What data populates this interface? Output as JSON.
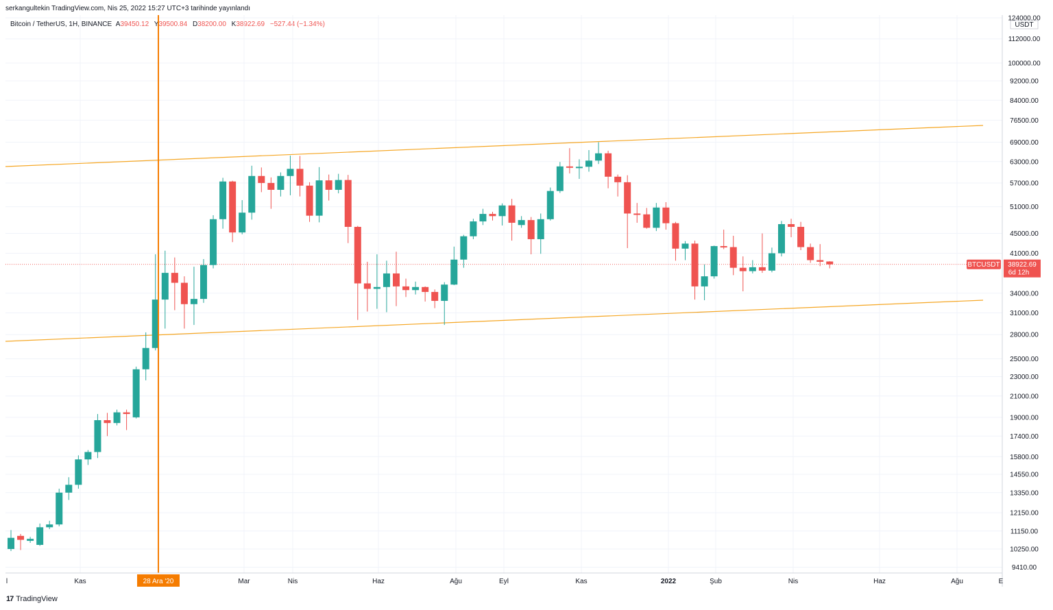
{
  "publisher_note": "serkangultekin TradingView.com, Nis 25, 2022 15:27 UTC+3 tarihinde yayınlandı",
  "legend": {
    "symbol": "Bitcoin / TetherUS, 1H, BINANCE",
    "open_label": "A",
    "open": "39450.12",
    "high_label": "Y",
    "high": "39500.84",
    "low_label": "D",
    "low": "38200.00",
    "close_label": "K",
    "close": "38922.69",
    "change": "−527.44 (−1.34%)"
  },
  "price_tag": {
    "symbol": "BTCUSDT",
    "price": "38922.69",
    "countdown": "6d 12h"
  },
  "axis_currency": "USDT",
  "branding": "TradingView",
  "colors": {
    "up": "#26a69a",
    "down": "#ef5350",
    "channel": "#f5a623",
    "marker": "#f57c00"
  },
  "chart_data": {
    "type": "candlestick",
    "title": "",
    "yscale": "log",
    "ylim": [
      9000,
      125000
    ],
    "y_tick_labels": [
      "124000.00",
      "112000.00",
      "100000.00",
      "92000.00",
      "84000.00",
      "76500.00",
      "69000.00",
      "63000.00",
      "57000.00",
      "51000.00",
      "45000.00",
      "41000.00",
      "34000.00",
      "31000.00",
      "28000.00",
      "25000.00",
      "23000.00",
      "21000.00",
      "19000.00",
      "17400.00",
      "15800.00",
      "14550.00",
      "13350.00",
      "12150.00",
      "11150.00",
      "10250.00",
      "9410.00"
    ],
    "x_tick_labels": [
      "l",
      "Kas",
      "Mar",
      "Nis",
      "Haz",
      "Ağu",
      "Eyl",
      "Kas",
      "2022",
      "Şub",
      "Nis",
      "Haz",
      "Ağu",
      "E"
    ],
    "highlighted_date": "28 Ara '20",
    "last_price": 38922.69,
    "candles": [
      {
        "o": 10250,
        "h": 11200,
        "l": 10150,
        "c": 10800
      },
      {
        "o": 10900,
        "h": 11000,
        "l": 10200,
        "c": 10700
      },
      {
        "o": 10650,
        "h": 10850,
        "l": 10550,
        "c": 10750
      },
      {
        "o": 10450,
        "h": 11550,
        "l": 10400,
        "c": 11350
      },
      {
        "o": 11350,
        "h": 11700,
        "l": 11250,
        "c": 11500
      },
      {
        "o": 11500,
        "h": 13600,
        "l": 11400,
        "c": 13350
      },
      {
        "o": 13350,
        "h": 14350,
        "l": 12900,
        "c": 13850
      },
      {
        "o": 13850,
        "h": 15900,
        "l": 13600,
        "c": 15600
      },
      {
        "o": 15600,
        "h": 16300,
        "l": 15200,
        "c": 16150
      },
      {
        "o": 16150,
        "h": 19300,
        "l": 15700,
        "c": 18750
      },
      {
        "o": 18750,
        "h": 19400,
        "l": 17400,
        "c": 18500
      },
      {
        "o": 18500,
        "h": 19700,
        "l": 18300,
        "c": 19450
      },
      {
        "o": 19450,
        "h": 19700,
        "l": 17900,
        "c": 19300
      },
      {
        "o": 19000,
        "h": 24100,
        "l": 18900,
        "c": 23800
      },
      {
        "o": 23800,
        "h": 28300,
        "l": 22600,
        "c": 26300
      },
      {
        "o": 26300,
        "h": 40800,
        "l": 26000,
        "c": 33000
      },
      {
        "o": 33000,
        "h": 41500,
        "l": 28800,
        "c": 37400
      },
      {
        "o": 37400,
        "h": 40200,
        "l": 31400,
        "c": 35700
      },
      {
        "o": 35700,
        "h": 36800,
        "l": 28800,
        "c": 32300
      },
      {
        "o": 32300,
        "h": 38500,
        "l": 29300,
        "c": 33100
      },
      {
        "o": 33100,
        "h": 39900,
        "l": 32500,
        "c": 38800
      },
      {
        "o": 38800,
        "h": 49000,
        "l": 38200,
        "c": 48100
      },
      {
        "o": 48100,
        "h": 58400,
        "l": 46000,
        "c": 57400
      },
      {
        "o": 57400,
        "h": 57600,
        "l": 43200,
        "c": 45200
      },
      {
        "o": 45200,
        "h": 52600,
        "l": 44800,
        "c": 49600
      },
      {
        "o": 49600,
        "h": 61800,
        "l": 48000,
        "c": 58900
      },
      {
        "o": 58900,
        "h": 61300,
        "l": 54600,
        "c": 57000
      },
      {
        "o": 57000,
        "h": 58500,
        "l": 50500,
        "c": 55200
      },
      {
        "o": 55200,
        "h": 59900,
        "l": 53500,
        "c": 58900
      },
      {
        "o": 58900,
        "h": 64800,
        "l": 53800,
        "c": 60900
      },
      {
        "o": 60900,
        "h": 64700,
        "l": 53500,
        "c": 56300
      },
      {
        "o": 56300,
        "h": 57200,
        "l": 47500,
        "c": 48900
      },
      {
        "o": 48900,
        "h": 61400,
        "l": 47400,
        "c": 57700
      },
      {
        "o": 57700,
        "h": 59300,
        "l": 52500,
        "c": 55200
      },
      {
        "o": 55200,
        "h": 59500,
        "l": 54300,
        "c": 57800
      },
      {
        "o": 57800,
        "h": 59200,
        "l": 43000,
        "c": 46400
      },
      {
        "o": 46400,
        "h": 46600,
        "l": 30000,
        "c": 35600
      },
      {
        "o": 35600,
        "h": 39400,
        "l": 31200,
        "c": 34700
      },
      {
        "o": 34700,
        "h": 40800,
        "l": 31600,
        "c": 35000
      },
      {
        "o": 35000,
        "h": 39600,
        "l": 31100,
        "c": 37300
      },
      {
        "o": 37300,
        "h": 41300,
        "l": 32000,
        "c": 35100
      },
      {
        "o": 35100,
        "h": 36400,
        "l": 33400,
        "c": 34500
      },
      {
        "o": 34500,
        "h": 35900,
        "l": 33800,
        "c": 35000
      },
      {
        "o": 35000,
        "h": 35100,
        "l": 32700,
        "c": 34200
      },
      {
        "o": 34200,
        "h": 34600,
        "l": 31700,
        "c": 32800
      },
      {
        "o": 32800,
        "h": 35800,
        "l": 29300,
        "c": 35400
      },
      {
        "o": 35400,
        "h": 42300,
        "l": 35300,
        "c": 39800
      },
      {
        "o": 39800,
        "h": 44700,
        "l": 38300,
        "c": 44400
      },
      {
        "o": 44400,
        "h": 48200,
        "l": 43800,
        "c": 47600
      },
      {
        "o": 47600,
        "h": 50500,
        "l": 46800,
        "c": 49300
      },
      {
        "o": 49300,
        "h": 49800,
        "l": 47800,
        "c": 48800
      },
      {
        "o": 48800,
        "h": 51800,
        "l": 46700,
        "c": 51300
      },
      {
        "o": 51300,
        "h": 52900,
        "l": 43500,
        "c": 47300
      },
      {
        "o": 46800,
        "h": 48800,
        "l": 46200,
        "c": 47900
      },
      {
        "o": 47900,
        "h": 48600,
        "l": 40800,
        "c": 43800
      },
      {
        "o": 43800,
        "h": 49400,
        "l": 40900,
        "c": 48100
      },
      {
        "o": 48100,
        "h": 55800,
        "l": 47800,
        "c": 54900
      },
      {
        "o": 54900,
        "h": 62900,
        "l": 54400,
        "c": 61600
      },
      {
        "o": 61600,
        "h": 67100,
        "l": 59600,
        "c": 61300
      },
      {
        "o": 61300,
        "h": 63700,
        "l": 58100,
        "c": 61500
      },
      {
        "o": 61500,
        "h": 66500,
        "l": 60100,
        "c": 63300
      },
      {
        "o": 63300,
        "h": 69000,
        "l": 62300,
        "c": 65500
      },
      {
        "o": 65500,
        "h": 66300,
        "l": 55600,
        "c": 58700
      },
      {
        "o": 58700,
        "h": 59300,
        "l": 53500,
        "c": 57200
      },
      {
        "o": 57200,
        "h": 59100,
        "l": 42000,
        "c": 49400
      },
      {
        "o": 49400,
        "h": 51900,
        "l": 47300,
        "c": 49200
      },
      {
        "o": 49200,
        "h": 50700,
        "l": 46000,
        "c": 46200
      },
      {
        "o": 46200,
        "h": 51900,
        "l": 45500,
        "c": 50800
      },
      {
        "o": 50800,
        "h": 52100,
        "l": 45800,
        "c": 47200
      },
      {
        "o": 47200,
        "h": 47500,
        "l": 39600,
        "c": 41900
      },
      {
        "o": 41900,
        "h": 43400,
        "l": 39700,
        "c": 42900
      },
      {
        "o": 42900,
        "h": 43500,
        "l": 33000,
        "c": 35100
      },
      {
        "o": 35100,
        "h": 38900,
        "l": 32900,
        "c": 36800
      },
      {
        "o": 36800,
        "h": 42500,
        "l": 36400,
        "c": 42400
      },
      {
        "o": 42400,
        "h": 45800,
        "l": 41800,
        "c": 42200
      },
      {
        "o": 42200,
        "h": 44500,
        "l": 37000,
        "c": 38300
      },
      {
        "o": 38300,
        "h": 40400,
        "l": 34300,
        "c": 37700
      },
      {
        "o": 37700,
        "h": 39700,
        "l": 37300,
        "c": 38400
      },
      {
        "o": 38400,
        "h": 45000,
        "l": 37400,
        "c": 37800
      },
      {
        "o": 37800,
        "h": 42100,
        "l": 37500,
        "c": 41000
      },
      {
        "o": 41000,
        "h": 47700,
        "l": 40400,
        "c": 47000
      },
      {
        "o": 47000,
        "h": 48200,
        "l": 44200,
        "c": 46400
      },
      {
        "o": 46400,
        "h": 47500,
        "l": 41600,
        "c": 42200
      },
      {
        "o": 42200,
        "h": 42900,
        "l": 39200,
        "c": 39700
      },
      {
        "o": 39700,
        "h": 42800,
        "l": 38600,
        "c": 39400
      },
      {
        "o": 39450,
        "h": 39500,
        "l": 38200,
        "c": 38922
      }
    ]
  }
}
